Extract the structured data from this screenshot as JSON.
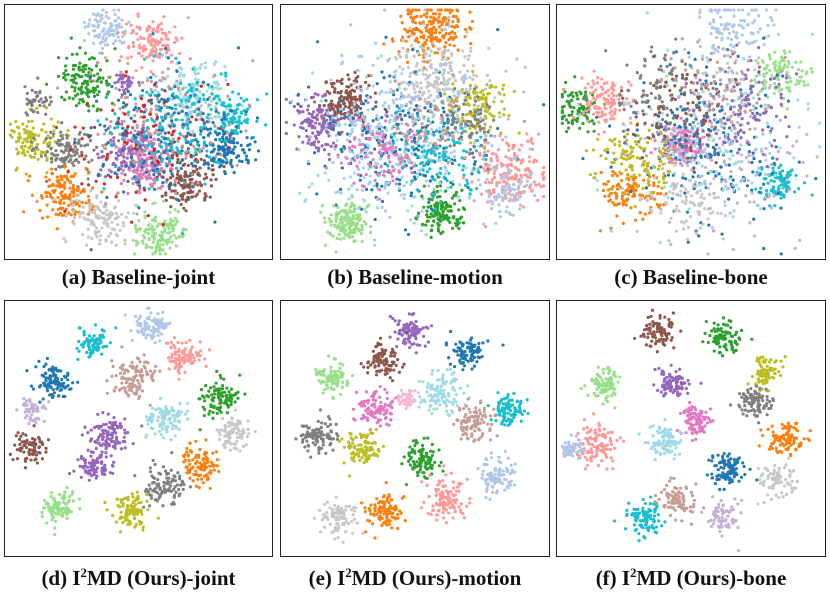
{
  "palette": [
    "#1f77b4",
    "#ff7f0e",
    "#2ca02c",
    "#d62728",
    "#9467bd",
    "#8c564b",
    "#e377c2",
    "#7f7f7f",
    "#bcbd22",
    "#17becf",
    "#aec7e8",
    "#ffbb78",
    "#98df8a",
    "#ff9896",
    "#c5b0d5",
    "#c49c94",
    "#f7b6d2",
    "#c7c7c7",
    "#dbdb8d",
    "#9edae5"
  ],
  "chart_data": [
    {
      "type": "scatter",
      "caption": {
        "prefix": "(a) Baseline-joint",
        "sup": "",
        "rest": ""
      },
      "clusters": [
        {
          "c": 10,
          "x": 0.38,
          "y": 0.09,
          "n": 90,
          "s": 0.04
        },
        {
          "c": 13,
          "x": 0.55,
          "y": 0.15,
          "n": 130,
          "s": 0.05
        },
        {
          "c": 2,
          "x": 0.3,
          "y": 0.3,
          "n": 130,
          "s": 0.05
        },
        {
          "c": 19,
          "x": 0.72,
          "y": 0.35,
          "n": 150,
          "s": 0.07
        },
        {
          "c": 9,
          "x": 0.85,
          "y": 0.44,
          "n": 90,
          "s": 0.04
        },
        {
          "c": 0,
          "x": 0.83,
          "y": 0.57,
          "n": 130,
          "s": 0.05
        },
        {
          "c": 4,
          "x": 0.46,
          "y": 0.58,
          "n": 150,
          "s": 0.05
        },
        {
          "c": 6,
          "x": 0.54,
          "y": 0.63,
          "n": 150,
          "s": 0.05
        },
        {
          "c": 5,
          "x": 0.69,
          "y": 0.69,
          "n": 140,
          "s": 0.05
        },
        {
          "c": 8,
          "x": 0.1,
          "y": 0.53,
          "n": 110,
          "s": 0.05
        },
        {
          "c": 7,
          "x": 0.23,
          "y": 0.57,
          "n": 110,
          "s": 0.05
        },
        {
          "c": 1,
          "x": 0.22,
          "y": 0.75,
          "n": 140,
          "s": 0.05
        },
        {
          "c": 17,
          "x": 0.35,
          "y": 0.84,
          "n": 120,
          "s": 0.05
        },
        {
          "c": 12,
          "x": 0.58,
          "y": 0.9,
          "n": 130,
          "s": 0.05
        },
        {
          "c": 15,
          "x": 0.56,
          "y": 0.5,
          "n": 220,
          "s": 0.13
        },
        {
          "c": 0,
          "x": 0.58,
          "y": 0.5,
          "n": 200,
          "s": 0.13
        },
        {
          "c": 9,
          "x": 0.62,
          "y": 0.47,
          "n": 160,
          "s": 0.12
        },
        {
          "c": 3,
          "x": 0.5,
          "y": 0.55,
          "n": 80,
          "s": 0.14
        },
        {
          "c": 7,
          "x": 0.12,
          "y": 0.38,
          "n": 40,
          "s": 0.03
        },
        {
          "c": 4,
          "x": 0.45,
          "y": 0.31,
          "n": 30,
          "s": 0.02
        }
      ]
    },
    {
      "type": "scatter",
      "caption": {
        "prefix": "(b) Baseline-motion",
        "sup": "",
        "rest": ""
      },
      "clusters": [
        {
          "c": 1,
          "x": 0.56,
          "y": 0.1,
          "n": 200,
          "s": 0.06
        },
        {
          "c": 17,
          "x": 0.59,
          "y": 0.28,
          "n": 180,
          "s": 0.08
        },
        {
          "c": 5,
          "x": 0.24,
          "y": 0.38,
          "n": 150,
          "s": 0.05
        },
        {
          "c": 4,
          "x": 0.14,
          "y": 0.47,
          "n": 150,
          "s": 0.05
        },
        {
          "c": 0,
          "x": 0.45,
          "y": 0.52,
          "n": 260,
          "s": 0.14
        },
        {
          "c": 19,
          "x": 0.43,
          "y": 0.55,
          "n": 220,
          "s": 0.16
        },
        {
          "c": 10,
          "x": 0.5,
          "y": 0.5,
          "n": 240,
          "s": 0.18
        },
        {
          "c": 13,
          "x": 0.85,
          "y": 0.66,
          "n": 180,
          "s": 0.07
        },
        {
          "c": 10,
          "x": 0.83,
          "y": 0.72,
          "n": 80,
          "s": 0.05
        },
        {
          "c": 2,
          "x": 0.6,
          "y": 0.81,
          "n": 130,
          "s": 0.04
        },
        {
          "c": 12,
          "x": 0.25,
          "y": 0.86,
          "n": 150,
          "s": 0.04
        },
        {
          "c": 8,
          "x": 0.74,
          "y": 0.4,
          "n": 110,
          "s": 0.06
        },
        {
          "c": 6,
          "x": 0.38,
          "y": 0.58,
          "n": 110,
          "s": 0.07
        },
        {
          "c": 9,
          "x": 0.6,
          "y": 0.58,
          "n": 110,
          "s": 0.08
        },
        {
          "c": 7,
          "x": 0.7,
          "y": 0.45,
          "n": 70,
          "s": 0.06
        },
        {
          "c": 15,
          "x": 0.55,
          "y": 0.45,
          "n": 70,
          "s": 0.1
        }
      ]
    },
    {
      "type": "scatter",
      "caption": {
        "prefix": "(c) Baseline-bone",
        "sup": "",
        "rest": ""
      },
      "clusters": [
        {
          "c": 10,
          "x": 0.65,
          "y": 0.1,
          "n": 120,
          "s": 0.07
        },
        {
          "c": 12,
          "x": 0.84,
          "y": 0.28,
          "n": 100,
          "s": 0.05
        },
        {
          "c": 2,
          "x": 0.08,
          "y": 0.4,
          "n": 90,
          "s": 0.04
        },
        {
          "c": 13,
          "x": 0.18,
          "y": 0.38,
          "n": 110,
          "s": 0.05
        },
        {
          "c": 6,
          "x": 0.46,
          "y": 0.56,
          "n": 150,
          "s": 0.04
        },
        {
          "c": 9,
          "x": 0.82,
          "y": 0.7,
          "n": 90,
          "s": 0.04
        },
        {
          "c": 1,
          "x": 0.28,
          "y": 0.73,
          "n": 120,
          "s": 0.05
        },
        {
          "c": 0,
          "x": 0.55,
          "y": 0.55,
          "n": 240,
          "s": 0.15
        },
        {
          "c": 19,
          "x": 0.56,
          "y": 0.5,
          "n": 220,
          "s": 0.17
        },
        {
          "c": 14,
          "x": 0.6,
          "y": 0.6,
          "n": 160,
          "s": 0.15
        },
        {
          "c": 8,
          "x": 0.3,
          "y": 0.62,
          "n": 110,
          "s": 0.07
        },
        {
          "c": 7,
          "x": 0.4,
          "y": 0.35,
          "n": 100,
          "s": 0.1
        },
        {
          "c": 4,
          "x": 0.7,
          "y": 0.4,
          "n": 100,
          "s": 0.1
        },
        {
          "c": 5,
          "x": 0.45,
          "y": 0.4,
          "n": 80,
          "s": 0.1
        },
        {
          "c": 15,
          "x": 0.6,
          "y": 0.3,
          "n": 80,
          "s": 0.09
        },
        {
          "c": 17,
          "x": 0.48,
          "y": 0.78,
          "n": 70,
          "s": 0.07
        }
      ]
    },
    {
      "type": "scatter",
      "caption": {
        "prefix": "(d) I",
        "sup": "2",
        "rest": "MD (Ours)-joint"
      },
      "clusters": [
        {
          "c": 10,
          "x": 0.55,
          "y": 0.1,
          "n": 90,
          "s": 0.03
        },
        {
          "c": 9,
          "x": 0.33,
          "y": 0.17,
          "n": 80,
          "s": 0.03
        },
        {
          "c": 13,
          "x": 0.67,
          "y": 0.22,
          "n": 90,
          "s": 0.035
        },
        {
          "c": 0,
          "x": 0.18,
          "y": 0.32,
          "n": 100,
          "s": 0.035
        },
        {
          "c": 15,
          "x": 0.48,
          "y": 0.3,
          "n": 110,
          "s": 0.04
        },
        {
          "c": 2,
          "x": 0.8,
          "y": 0.38,
          "n": 100,
          "s": 0.035
        },
        {
          "c": 4,
          "x": 0.38,
          "y": 0.53,
          "n": 110,
          "s": 0.04
        },
        {
          "c": 19,
          "x": 0.6,
          "y": 0.46,
          "n": 100,
          "s": 0.035
        },
        {
          "c": 17,
          "x": 0.86,
          "y": 0.52,
          "n": 90,
          "s": 0.03
        },
        {
          "c": 5,
          "x": 0.09,
          "y": 0.58,
          "n": 80,
          "s": 0.03
        },
        {
          "c": 4,
          "x": 0.33,
          "y": 0.65,
          "n": 80,
          "s": 0.03
        },
        {
          "c": 7,
          "x": 0.6,
          "y": 0.72,
          "n": 100,
          "s": 0.04
        },
        {
          "c": 1,
          "x": 0.74,
          "y": 0.64,
          "n": 100,
          "s": 0.035
        },
        {
          "c": 12,
          "x": 0.2,
          "y": 0.8,
          "n": 90,
          "s": 0.035
        },
        {
          "c": 8,
          "x": 0.47,
          "y": 0.83,
          "n": 90,
          "s": 0.035
        },
        {
          "c": 14,
          "x": 0.1,
          "y": 0.43,
          "n": 50,
          "s": 0.02
        }
      ]
    },
    {
      "type": "scatter",
      "caption": {
        "prefix": "(e) I",
        "sup": "2",
        "rest": "MD (Ours)-motion"
      },
      "clusters": [
        {
          "c": 4,
          "x": 0.48,
          "y": 0.12,
          "n": 90,
          "s": 0.03
        },
        {
          "c": 5,
          "x": 0.38,
          "y": 0.23,
          "n": 100,
          "s": 0.035
        },
        {
          "c": 0,
          "x": 0.7,
          "y": 0.2,
          "n": 90,
          "s": 0.03
        },
        {
          "c": 12,
          "x": 0.19,
          "y": 0.3,
          "n": 90,
          "s": 0.03
        },
        {
          "c": 6,
          "x": 0.35,
          "y": 0.42,
          "n": 100,
          "s": 0.035
        },
        {
          "c": 19,
          "x": 0.6,
          "y": 0.36,
          "n": 110,
          "s": 0.04
        },
        {
          "c": 9,
          "x": 0.85,
          "y": 0.43,
          "n": 90,
          "s": 0.03
        },
        {
          "c": 15,
          "x": 0.72,
          "y": 0.48,
          "n": 100,
          "s": 0.035
        },
        {
          "c": 7,
          "x": 0.14,
          "y": 0.53,
          "n": 90,
          "s": 0.035
        },
        {
          "c": 8,
          "x": 0.3,
          "y": 0.58,
          "n": 90,
          "s": 0.035
        },
        {
          "c": 2,
          "x": 0.52,
          "y": 0.62,
          "n": 100,
          "s": 0.035
        },
        {
          "c": 10,
          "x": 0.8,
          "y": 0.68,
          "n": 90,
          "s": 0.035
        },
        {
          "c": 13,
          "x": 0.62,
          "y": 0.78,
          "n": 110,
          "s": 0.04
        },
        {
          "c": 1,
          "x": 0.39,
          "y": 0.83,
          "n": 100,
          "s": 0.035
        },
        {
          "c": 17,
          "x": 0.22,
          "y": 0.85,
          "n": 90,
          "s": 0.035
        },
        {
          "c": 16,
          "x": 0.47,
          "y": 0.38,
          "n": 50,
          "s": 0.02
        }
      ]
    },
    {
      "type": "scatter",
      "caption": {
        "prefix": "(f) I",
        "sup": "2",
        "rest": "MD (Ours)-bone"
      },
      "clusters": [
        {
          "c": 5,
          "x": 0.38,
          "y": 0.12,
          "n": 90,
          "s": 0.03
        },
        {
          "c": 2,
          "x": 0.62,
          "y": 0.14,
          "n": 90,
          "s": 0.03
        },
        {
          "c": 12,
          "x": 0.18,
          "y": 0.32,
          "n": 90,
          "s": 0.03
        },
        {
          "c": 4,
          "x": 0.43,
          "y": 0.32,
          "n": 90,
          "s": 0.03
        },
        {
          "c": 8,
          "x": 0.78,
          "y": 0.28,
          "n": 80,
          "s": 0.03
        },
        {
          "c": 7,
          "x": 0.74,
          "y": 0.4,
          "n": 90,
          "s": 0.03
        },
        {
          "c": 13,
          "x": 0.15,
          "y": 0.56,
          "n": 110,
          "s": 0.04
        },
        {
          "c": 6,
          "x": 0.52,
          "y": 0.47,
          "n": 90,
          "s": 0.03
        },
        {
          "c": 19,
          "x": 0.4,
          "y": 0.55,
          "n": 90,
          "s": 0.03
        },
        {
          "c": 1,
          "x": 0.85,
          "y": 0.55,
          "n": 90,
          "s": 0.035
        },
        {
          "c": 0,
          "x": 0.63,
          "y": 0.66,
          "n": 100,
          "s": 0.035
        },
        {
          "c": 10,
          "x": 0.06,
          "y": 0.58,
          "n": 50,
          "s": 0.02
        },
        {
          "c": 17,
          "x": 0.82,
          "y": 0.7,
          "n": 80,
          "s": 0.03
        },
        {
          "c": 15,
          "x": 0.45,
          "y": 0.78,
          "n": 90,
          "s": 0.035
        },
        {
          "c": 9,
          "x": 0.32,
          "y": 0.85,
          "n": 90,
          "s": 0.035
        },
        {
          "c": 14,
          "x": 0.62,
          "y": 0.85,
          "n": 70,
          "s": 0.03
        }
      ]
    }
  ]
}
